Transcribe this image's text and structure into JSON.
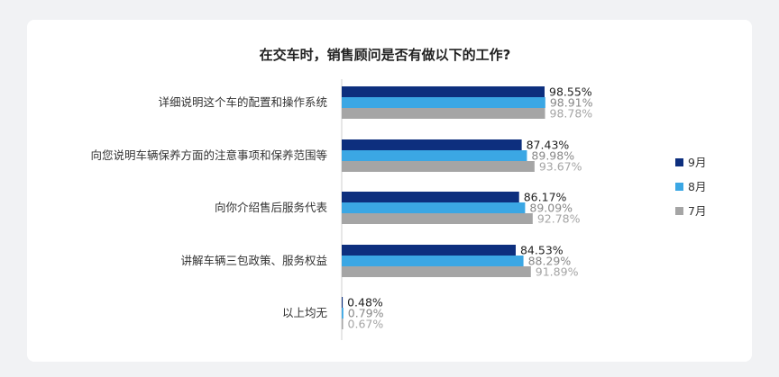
{
  "chart_data": {
    "type": "bar",
    "orientation": "horizontal",
    "title": "在交车时，销售顾问是否有做以下的工作?",
    "categories": [
      "详细说明这个车的配置和操作系统",
      "向您说明车辆保养方面的注意事项和保养范围等",
      "向你介绍售后服务代表",
      "讲解车辆三包政策、服务权益",
      "以上均无"
    ],
    "series": [
      {
        "name": "9月",
        "color": "#0d2f7e",
        "label_color": "#222222",
        "values": [
          98.55,
          87.43,
          86.17,
          84.53,
          0.48
        ]
      },
      {
        "name": "8月",
        "color": "#3ba7e4",
        "label_color": "#888888",
        "values": [
          98.91,
          89.98,
          89.09,
          88.29,
          0.79
        ]
      },
      {
        "name": "7月",
        "color": "#a5a5a5",
        "label_color": "#a5a5a5",
        "values": [
          98.78,
          93.67,
          92.78,
          91.89,
          0.67
        ]
      }
    ],
    "value_suffix": "%",
    "xlim": [
      0,
      100
    ],
    "grid": false,
    "legend": "right"
  }
}
